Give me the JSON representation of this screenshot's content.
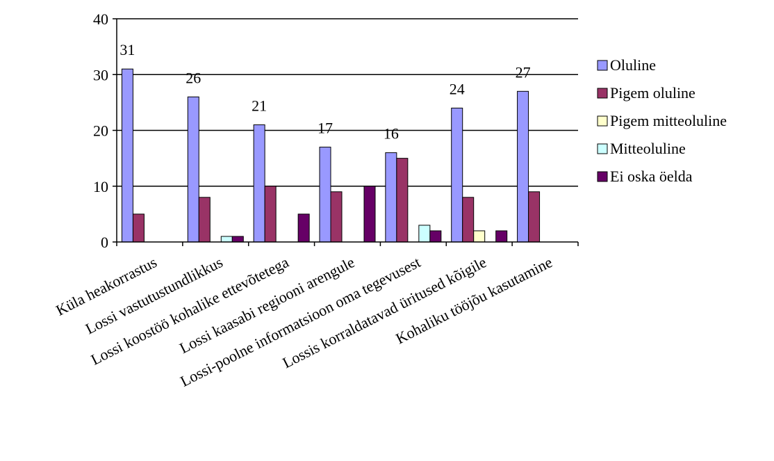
{
  "chart_data": {
    "type": "bar",
    "title": "",
    "xlabel": "",
    "ylabel": "",
    "ylim": [
      0,
      40
    ],
    "yticks": [
      0,
      10,
      20,
      30,
      40
    ],
    "grid": true,
    "legend_position": "right",
    "categories": [
      "Küla heakorrastus",
      "Lossi vastutustundlikkus",
      "Lossi koostöö kohalike ettevõtetega",
      "Lossi kaasabi regiooni arengule",
      "Lossi-poolne informatsioon oma tegevusest",
      "Lossis korraldatavad üritused kõigile",
      "Kohaliku tööjõu kasutamine"
    ],
    "series": [
      {
        "name": "Oluline",
        "color": "#9999ff",
        "values": [
          31,
          26,
          21,
          17,
          16,
          24,
          27
        ]
      },
      {
        "name": "Pigem oluline",
        "color": "#993366",
        "values": [
          5,
          8,
          10,
          9,
          15,
          8,
          9
        ]
      },
      {
        "name": "Pigem mitteoluline",
        "color": "#ffffcc",
        "values": [
          0,
          0,
          0,
          0,
          0,
          2,
          0
        ]
      },
      {
        "name": "Mitteoluline",
        "color": "#ccffff",
        "values": [
          0,
          1,
          0,
          0,
          3,
          0,
          0
        ]
      },
      {
        "name": "Ei oska öelda",
        "color": "#660066",
        "values": [
          0,
          1,
          5,
          10,
          2,
          2,
          0
        ]
      }
    ],
    "data_labels": {
      "series": "Oluline",
      "values": [
        "31",
        "26",
        "21",
        "17",
        "16",
        "24",
        "27"
      ]
    }
  }
}
